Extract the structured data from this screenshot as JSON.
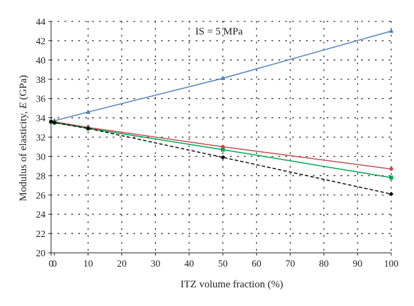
{
  "chart_data": {
    "type": "line",
    "annotation": "IS = 5 MPa",
    "xlabel": "ITZ volume fraction (%)",
    "ylabel_main": "Modulus of elasticity, ",
    "ylabel_var": "E",
    "ylabel_unit": " (GPa)",
    "xlim": [
      -1,
      100
    ],
    "ylim": [
      20,
      44
    ],
    "xticks": [
      0,
      10,
      20,
      30,
      40,
      50,
      60,
      70,
      80,
      90,
      100
    ],
    "yticks": [
      20,
      22,
      24,
      26,
      28,
      30,
      32,
      34,
      36,
      38,
      40,
      42,
      44
    ],
    "xtick_labels": [
      "0",
      "0",
      "10",
      "20",
      "30",
      "40",
      "50",
      "60",
      "70",
      "80",
      "90",
      "100"
    ],
    "xtick_label_positions": [
      -1,
      0,
      10,
      20,
      30,
      40,
      50,
      60,
      70,
      80,
      90,
      100
    ],
    "grid": true,
    "series": [
      {
        "color": "#4f81bd",
        "marker": "triangle",
        "dashed": false,
        "x": [
          -1,
          0,
          10,
          50,
          100
        ],
        "y": [
          33.6,
          33.7,
          34.6,
          38.1,
          43.0
        ]
      },
      {
        "color": "#c0504d",
        "marker": "circle",
        "dashed": false,
        "x": [
          -1,
          0,
          10,
          50,
          100
        ],
        "y": [
          33.6,
          33.6,
          33.0,
          31.0,
          28.7
        ]
      },
      {
        "color": "#00a651",
        "marker": "square",
        "dashed": false,
        "x": [
          -1,
          0,
          10,
          50,
          100
        ],
        "y": [
          33.6,
          33.5,
          32.9,
          30.7,
          27.8
        ]
      },
      {
        "color": "#000000",
        "marker": "diamond",
        "dashed": true,
        "x": [
          -1,
          0,
          10,
          50,
          100
        ],
        "y": [
          33.6,
          33.5,
          32.9,
          29.9,
          26.1
        ]
      }
    ]
  }
}
